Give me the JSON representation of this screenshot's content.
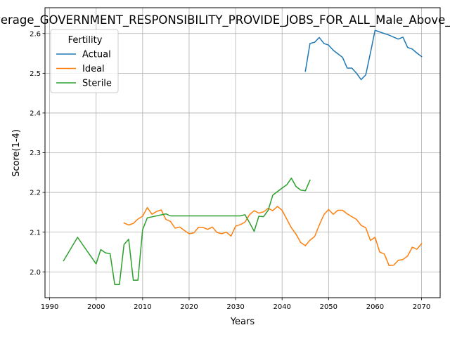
{
  "chart_data": {
    "type": "line",
    "title": "Average_GOVERNMENT_RESPONSIBILITY_PROVIDE_JOBS_FOR_ALL_Male_Above_Average",
    "xlabel": "Years",
    "ylabel": "Score(1-4)",
    "xlim": [
      1989,
      2074
    ],
    "ylim": [
      1.935,
      2.665
    ],
    "xticks": [
      1990,
      2000,
      2010,
      2020,
      2030,
      2040,
      2050,
      2060,
      2070
    ],
    "yticks": [
      2.0,
      2.1,
      2.2,
      2.3,
      2.4,
      2.5,
      2.6
    ],
    "grid": true,
    "legend": {
      "title": "Fertility",
      "placement": "upper left"
    },
    "series": [
      {
        "name": "Actual",
        "color": "#1f77b4",
        "points": [
          [
            2045,
            2.505
          ],
          [
            2046,
            2.575
          ],
          [
            2047,
            2.578
          ],
          [
            2048,
            2.59
          ],
          [
            2049,
            2.575
          ],
          [
            2050,
            2.571
          ],
          [
            2051,
            2.558
          ],
          [
            2052,
            2.549
          ],
          [
            2053,
            2.54
          ],
          [
            2054,
            2.513
          ],
          [
            2055,
            2.513
          ],
          [
            2056,
            2.5
          ],
          [
            2057,
            2.484
          ],
          [
            2058,
            2.496
          ],
          [
            2059,
            2.551
          ],
          [
            2060,
            2.608
          ],
          [
            2061,
            2.604
          ],
          [
            2062,
            2.6
          ],
          [
            2063,
            2.596
          ],
          [
            2064,
            2.591
          ],
          [
            2065,
            2.586
          ],
          [
            2066,
            2.591
          ],
          [
            2067,
            2.565
          ],
          [
            2068,
            2.561
          ],
          [
            2069,
            2.551
          ],
          [
            2070,
            2.542
          ]
        ]
      },
      {
        "name": "Ideal",
        "color": "#ff7f0e",
        "points": [
          [
            2006,
            2.123
          ],
          [
            2007,
            2.118
          ],
          [
            2008,
            2.122
          ],
          [
            2009,
            2.133
          ],
          [
            2010,
            2.14
          ],
          [
            2011,
            2.162
          ],
          [
            2012,
            2.145
          ],
          [
            2013,
            2.152
          ],
          [
            2014,
            2.156
          ],
          [
            2015,
            2.132
          ],
          [
            2016,
            2.127
          ],
          [
            2017,
            2.11
          ],
          [
            2018,
            2.113
          ],
          [
            2019,
            2.104
          ],
          [
            2020,
            2.096
          ],
          [
            2021,
            2.098
          ],
          [
            2022,
            2.112
          ],
          [
            2023,
            2.112
          ],
          [
            2024,
            2.107
          ],
          [
            2025,
            2.113
          ],
          [
            2026,
            2.099
          ],
          [
            2027,
            2.096
          ],
          [
            2028,
            2.1
          ],
          [
            2029,
            2.09
          ],
          [
            2030,
            2.115
          ],
          [
            2031,
            2.119
          ],
          [
            2032,
            2.125
          ],
          [
            2033,
            2.144
          ],
          [
            2034,
            2.154
          ],
          [
            2035,
            2.148
          ],
          [
            2036,
            2.151
          ],
          [
            2037,
            2.16
          ],
          [
            2038,
            2.154
          ],
          [
            2039,
            2.165
          ],
          [
            2040,
            2.155
          ],
          [
            2041,
            2.133
          ],
          [
            2042,
            2.111
          ],
          [
            2043,
            2.095
          ],
          [
            2044,
            2.074
          ],
          [
            2045,
            2.066
          ],
          [
            2046,
            2.08
          ],
          [
            2047,
            2.089
          ],
          [
            2048,
            2.118
          ],
          [
            2049,
            2.144
          ],
          [
            2050,
            2.157
          ],
          [
            2051,
            2.145
          ],
          [
            2052,
            2.155
          ],
          [
            2053,
            2.155
          ],
          [
            2054,
            2.146
          ],
          [
            2055,
            2.139
          ],
          [
            2056,
            2.132
          ],
          [
            2057,
            2.117
          ],
          [
            2058,
            2.111
          ],
          [
            2059,
            2.079
          ],
          [
            2060,
            2.087
          ],
          [
            2061,
            2.05
          ],
          [
            2062,
            2.045
          ],
          [
            2063,
            2.016
          ],
          [
            2064,
            2.017
          ],
          [
            2065,
            2.029
          ],
          [
            2066,
            2.031
          ],
          [
            2067,
            2.04
          ],
          [
            2068,
            2.062
          ],
          [
            2069,
            2.057
          ],
          [
            2070,
            2.071
          ]
        ]
      },
      {
        "name": "Sterile",
        "color": "#2ca02c",
        "points": [
          [
            1993,
            2.028
          ],
          [
            1996,
            2.087
          ],
          [
            2000,
            2.02
          ],
          [
            2001,
            2.056
          ],
          [
            2002,
            2.048
          ],
          [
            2003,
            2.046
          ],
          [
            2004,
            1.968
          ],
          [
            2005,
            1.968
          ],
          [
            2006,
            2.069
          ],
          [
            2007,
            2.082
          ],
          [
            2008,
            1.979
          ],
          [
            2009,
            1.979
          ],
          [
            2010,
            2.106
          ],
          [
            2011,
            2.136
          ],
          [
            2015,
            2.146
          ],
          [
            2016,
            2.141
          ],
          [
            2031,
            2.141
          ],
          [
            2032,
            2.144
          ],
          [
            2033,
            2.124
          ],
          [
            2034,
            2.102
          ],
          [
            2035,
            2.14
          ],
          [
            2036,
            2.139
          ],
          [
            2037,
            2.155
          ],
          [
            2038,
            2.193
          ],
          [
            2039,
            2.202
          ],
          [
            2040,
            2.211
          ],
          [
            2041,
            2.219
          ],
          [
            2042,
            2.236
          ],
          [
            2043,
            2.215
          ],
          [
            2044,
            2.206
          ],
          [
            2045,
            2.204
          ],
          [
            2046,
            2.231
          ]
        ]
      }
    ]
  }
}
